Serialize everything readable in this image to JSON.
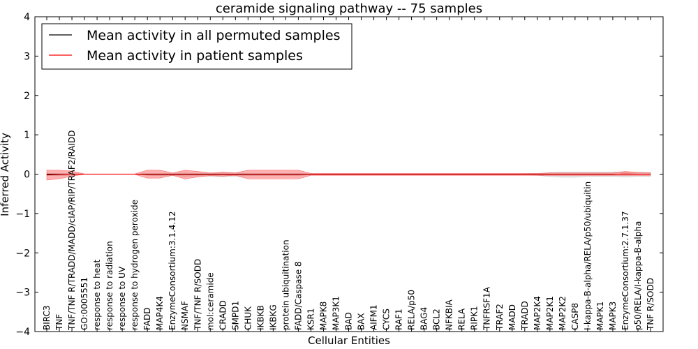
{
  "chart_data": {
    "type": "line",
    "title": "ceramide signaling pathway -- 75 samples",
    "xlabel": "Cellular Entities",
    "ylabel": "Inferred Activity",
    "ylim": [
      -4,
      4
    ],
    "yticks": [
      -4,
      -3,
      -2,
      -1,
      0,
      1,
      2,
      3,
      4
    ],
    "ytick_labels": [
      "−4",
      "−3",
      "−2",
      "−1",
      "0",
      "1",
      "2",
      "3",
      "4"
    ],
    "legend_position": "top-left",
    "categories": [
      "BIRC3",
      "TNF",
      "TNF/TNF R/TRADD/MADD/cIAP/RIP/TRAF2/RAIDD",
      "GO:0005551",
      "response to heat",
      "response to radiation",
      "response to UV",
      "response to hydrogen peroxide",
      "FADD",
      "MAP4K4",
      "EnzymeConsortium:3.1.4.12",
      "NSMAF",
      "TNF/TNF R/SODD",
      "mol:ceramide",
      "CRADD",
      "SMPD1",
      "CHUK",
      "IKBKB",
      "IKBKG",
      "protein ubiquitination",
      "FADD/Caspase 8",
      "KSR1",
      "MAPK8",
      "MAP3K1",
      "BAD",
      "BAX",
      "AIFM1",
      "CYCS",
      "RAF1",
      "RELA/p50",
      "BAG4",
      "BCL2",
      "NFKBIA",
      "RELA",
      "RIPK1",
      "TNFRSF1A",
      "TRAF2",
      "MADD",
      "TRADD",
      "MAP2K4",
      "MAP2K1",
      "MAP2K2",
      "CASP8",
      "I-kappa-B-alpha/RELA/p50/ubiquitin",
      "MAPK1",
      "MAPK3",
      "EnzymeConsortium:2.7.1.37",
      "p50/RELA/I-kappa-B-alpha",
      "TNF R/SODD"
    ],
    "series": [
      {
        "name": "Mean activity in all permuted samples",
        "color": "#000000",
        "values": [
          0,
          0,
          0,
          0,
          0,
          0,
          0,
          0,
          0,
          0,
          0,
          0,
          0,
          0,
          0,
          0,
          0,
          0,
          0,
          0,
          0,
          0,
          0,
          0,
          0,
          0,
          0,
          0,
          0,
          0,
          0,
          0,
          0,
          0,
          0,
          0,
          0,
          0,
          0,
          0,
          0,
          0,
          0,
          0,
          0,
          0,
          0,
          0,
          0
        ],
        "band_upper": [
          0.02,
          0.02,
          0.02,
          0.005,
          0.005,
          0.005,
          0.005,
          0.005,
          0.02,
          0.02,
          0.02,
          0.03,
          0.02,
          0.02,
          0.03,
          0.03,
          0.02,
          0.02,
          0.02,
          0.02,
          0.02,
          0.01,
          0.01,
          0.01,
          0.01,
          0.01,
          0.01,
          0.01,
          0.01,
          0.01,
          0.01,
          0.01,
          0.01,
          0.01,
          0.01,
          0.01,
          0.01,
          0.01,
          0.01,
          0.02,
          0.04,
          0.05,
          0.05,
          0.05,
          0.05,
          0.05,
          0.05,
          0.05,
          0.04
        ],
        "band_lower": [
          -0.04,
          -0.04,
          -0.03,
          -0.005,
          -0.005,
          -0.005,
          -0.005,
          -0.005,
          -0.03,
          -0.04,
          -0.03,
          -0.05,
          -0.04,
          -0.05,
          -0.06,
          -0.05,
          -0.04,
          -0.04,
          -0.04,
          -0.04,
          -0.04,
          -0.02,
          -0.02,
          -0.02,
          -0.02,
          -0.02,
          -0.02,
          -0.02,
          -0.02,
          -0.02,
          -0.02,
          -0.02,
          -0.02,
          -0.02,
          -0.02,
          -0.02,
          -0.02,
          -0.02,
          -0.02,
          -0.03,
          -0.06,
          -0.08,
          -0.08,
          -0.06,
          -0.06,
          -0.06,
          -0.07,
          -0.06,
          -0.06
        ]
      },
      {
        "name": "Mean activity in patient samples",
        "color": "#ff0000",
        "values": [
          -0.02,
          -0.01,
          0,
          0,
          0,
          0,
          0,
          0,
          -0.01,
          -0.01,
          -0.01,
          -0.01,
          -0.01,
          -0.01,
          -0.01,
          -0.01,
          -0.01,
          -0.01,
          -0.01,
          -0.01,
          -0.01,
          -0.005,
          -0.005,
          -0.005,
          -0.005,
          -0.005,
          -0.005,
          -0.005,
          -0.005,
          -0.005,
          -0.005,
          -0.005,
          -0.005,
          -0.005,
          -0.005,
          -0.005,
          -0.005,
          -0.005,
          -0.005,
          -0.005,
          -0.005,
          -0.005,
          -0.005,
          -0.005,
          -0.005,
          -0.005,
          0.005,
          0,
          0
        ],
        "band_upper": [
          0.1,
          0.1,
          0.08,
          0.005,
          0.005,
          0.005,
          0.005,
          0.005,
          0.1,
          0.1,
          0.03,
          0.1,
          0.07,
          0.03,
          0.05,
          0.03,
          0.1,
          0.1,
          0.1,
          0.1,
          0.1,
          0.02,
          0.02,
          0.02,
          0.02,
          0.02,
          0.02,
          0.02,
          0.02,
          0.02,
          0.02,
          0.02,
          0.02,
          0.02,
          0.02,
          0.02,
          0.02,
          0.02,
          0.02,
          0.02,
          0.03,
          0.03,
          0.03,
          0.03,
          0.03,
          0.03,
          0.07,
          0.04,
          0.03
        ],
        "band_lower": [
          -0.15,
          -0.12,
          -0.05,
          -0.005,
          -0.005,
          -0.005,
          -0.005,
          -0.005,
          -0.1,
          -0.1,
          -0.03,
          -0.12,
          -0.07,
          -0.04,
          -0.05,
          -0.03,
          -0.12,
          -0.12,
          -0.12,
          -0.12,
          -0.12,
          -0.03,
          -0.03,
          -0.03,
          -0.03,
          -0.03,
          -0.03,
          -0.03,
          -0.03,
          -0.03,
          -0.03,
          -0.03,
          -0.03,
          -0.03,
          -0.03,
          -0.03,
          -0.03,
          -0.03,
          -0.03,
          -0.03,
          -0.03,
          -0.03,
          -0.03,
          -0.03,
          -0.03,
          -0.03,
          -0.03,
          -0.03,
          -0.03
        ]
      }
    ]
  }
}
